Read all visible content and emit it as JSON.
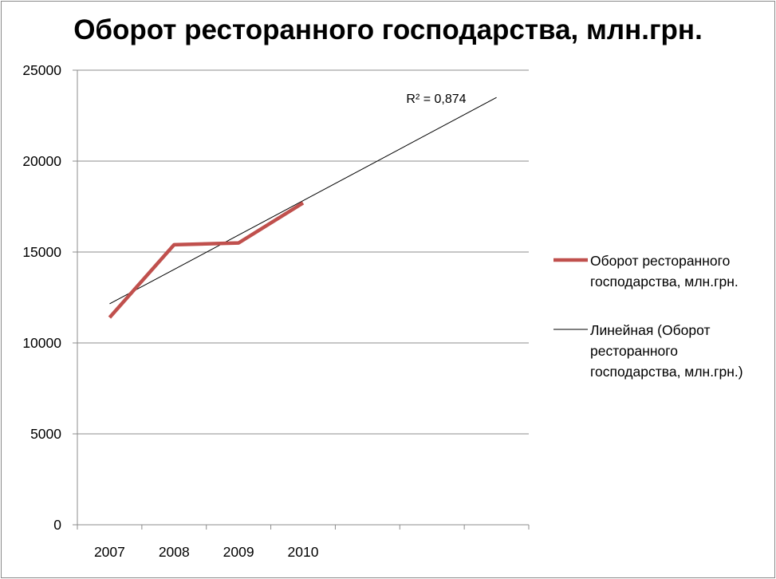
{
  "chart_data": {
    "type": "line",
    "title": "Оборот ресторанного господарства, млн.грн.",
    "categories": [
      "2007",
      "2008",
      "2009",
      "2010"
    ],
    "x_extra_slots": 3,
    "ylim": [
      0,
      25000
    ],
    "yticks": [
      "0",
      "5000",
      "10000",
      "15000",
      "20000",
      "25000"
    ],
    "grid": true,
    "series": [
      {
        "name": "Оборот ресторанного господарства, млн.грн.",
        "values": [
          11400,
          15400,
          15500,
          17700
        ],
        "color": "#c0504d"
      }
    ],
    "trendline": {
      "type": "linear",
      "name": "Линейная (Оборот ресторанного господарства, млн.грн.)",
      "r2_label": "R² = 0,874",
      "start_value": 12150,
      "end_value": 23500,
      "end_slot_position": 6.5,
      "color": "#000000"
    },
    "legend": {
      "position": "right",
      "entries": [
        {
          "lines": [
            "Оборот ресторанного",
            "господарства, млн.грн."
          ]
        },
        {
          "lines": [
            "Линейная (Оборот",
            "ресторанного",
            "господарства, млн.грн.)"
          ]
        }
      ]
    }
  }
}
